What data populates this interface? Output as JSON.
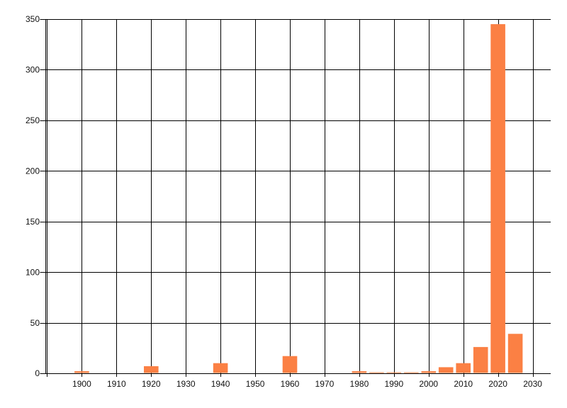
{
  "chart_data": {
    "type": "bar",
    "title": "",
    "xlabel": "",
    "ylabel": "",
    "x": [
      1900,
      1920,
      1940,
      1960,
      1980,
      1985,
      1990,
      1995,
      2000,
      2005,
      2010,
      2015,
      2020,
      2025
    ],
    "values": [
      2,
      7,
      10,
      17,
      2,
      1,
      1,
      1,
      2,
      6,
      10,
      26,
      345,
      39
    ],
    "x_ticks": [
      1900,
      1910,
      1920,
      1930,
      1940,
      1950,
      1960,
      1970,
      1980,
      1990,
      2000,
      2010,
      2020,
      2030
    ],
    "x_tick_labels": [
      "1900",
      "1910",
      "1920",
      "1930",
      "1940",
      "1950",
      "1960",
      "1970",
      "1980",
      "1990",
      "2000",
      "2010",
      "2020",
      "2030"
    ],
    "y_ticks": [
      0,
      50,
      100,
      150,
      200,
      250,
      300,
      350
    ],
    "y_tick_labels": [
      "0",
      "50",
      "100",
      "150",
      "200",
      "250",
      "300",
      "350"
    ],
    "x_grid": [
      1890,
      1900,
      1910,
      1920,
      1930,
      1940,
      1950,
      1960,
      1970,
      1980,
      1990,
      2000,
      2010,
      2020,
      2030
    ],
    "xlim": [
      1889.4,
      2035.2
    ],
    "ylim": [
      0,
      350
    ],
    "grid": true,
    "legend_position": "none",
    "bar_width_years": 4.2,
    "colors": {
      "bar": "#fb8044",
      "grid": "#000000",
      "text": "#111111",
      "background": "#ffffff"
    }
  }
}
